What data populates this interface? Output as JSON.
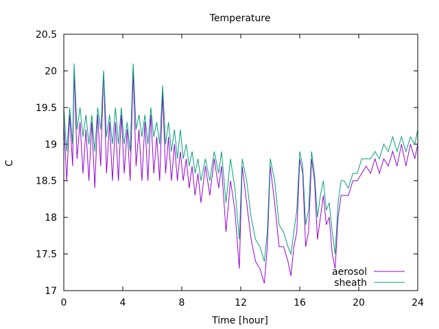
{
  "chart_data": {
    "type": "line",
    "title": "Temperature",
    "xlabel": "Time [hour]",
    "ylabel": "C",
    "xlim": [
      0,
      24
    ],
    "ylim": [
      17,
      20.5
    ],
    "xticks": [
      0,
      4,
      8,
      12,
      16,
      20,
      24
    ],
    "yticks": [
      17,
      17.5,
      18,
      18.5,
      19,
      19.5,
      20,
      20.5
    ],
    "ytick_labels": [
      "17",
      "17.5",
      "18",
      "18.5",
      "19",
      "19.5",
      "20",
      "20.5"
    ],
    "grid": false,
    "legend_position": "bottom-right",
    "series": [
      {
        "name": "aerosol",
        "color": "#9400d3",
        "x": [
          0,
          0.2,
          0.4,
          0.6,
          0.7,
          0.9,
          1.1,
          1.3,
          1.5,
          1.7,
          1.9,
          2.1,
          2.3,
          2.5,
          2.7,
          2.9,
          3.1,
          3.3,
          3.5,
          3.7,
          3.9,
          4.1,
          4.3,
          4.5,
          4.7,
          4.9,
          5.1,
          5.3,
          5.5,
          5.7,
          5.9,
          6.1,
          6.3,
          6.5,
          6.7,
          6.9,
          7.1,
          7.3,
          7.5,
          7.7,
          7.9,
          8.1,
          8.3,
          8.5,
          8.7,
          8.9,
          9.1,
          9.3,
          9.6,
          9.9,
          10.2,
          10.5,
          10.7,
          11.0,
          11.3,
          11.6,
          11.9,
          12.1,
          12.4,
          12.7,
          13.0,
          13.3,
          13.6,
          13.8,
          14.0,
          14.3,
          14.6,
          14.9,
          15.2,
          15.4,
          15.6,
          15.8,
          16.0,
          16.2,
          16.4,
          16.6,
          16.8,
          17.0,
          17.2,
          17.4,
          17.6,
          17.8,
          18.0,
          18.2,
          18.4,
          18.6,
          18.8,
          19.0,
          19.3,
          19.6,
          19.9,
          20.2,
          20.5,
          20.8,
          21.1,
          21.4,
          21.7,
          22.0,
          22.3,
          22.6,
          22.9,
          23.2,
          23.5,
          23.8,
          24.0
        ],
        "values": [
          19.3,
          18.5,
          19.4,
          18.7,
          20.0,
          18.8,
          19.3,
          18.6,
          19.2,
          18.5,
          19.3,
          18.4,
          19.4,
          18.7,
          20.0,
          18.6,
          19.3,
          18.5,
          19.3,
          18.5,
          19.4,
          18.6,
          19.2,
          18.5,
          20.0,
          18.7,
          19.2,
          18.5,
          19.3,
          18.5,
          19.4,
          18.6,
          19.1,
          18.5,
          19.7,
          18.6,
          19.1,
          18.5,
          19.0,
          18.5,
          18.9,
          18.5,
          18.8,
          18.4,
          18.7,
          18.3,
          18.6,
          18.2,
          18.7,
          18.3,
          18.8,
          18.4,
          18.7,
          17.8,
          18.5,
          18.1,
          17.3,
          18.7,
          18.2,
          17.7,
          17.4,
          17.3,
          17.1,
          17.6,
          18.7,
          18.2,
          17.6,
          17.6,
          17.4,
          17.2,
          17.6,
          17.8,
          18.8,
          18.6,
          17.6,
          17.8,
          18.8,
          18.5,
          17.7,
          18.0,
          18.3,
          17.9,
          18.0,
          17.5,
          17.3,
          18.0,
          18.3,
          18.3,
          18.3,
          18.5,
          18.5,
          18.6,
          18.7,
          18.6,
          18.8,
          18.6,
          18.8,
          18.7,
          18.9,
          18.7,
          19.0,
          18.7,
          19.0,
          18.8,
          19.0
        ]
      },
      {
        "name": "sheath",
        "color": "#009e73",
        "x": [
          0,
          0.2,
          0.4,
          0.6,
          0.7,
          0.9,
          1.1,
          1.3,
          1.5,
          1.7,
          1.9,
          2.1,
          2.3,
          2.5,
          2.7,
          2.9,
          3.1,
          3.3,
          3.5,
          3.7,
          3.9,
          4.1,
          4.3,
          4.5,
          4.7,
          4.9,
          5.1,
          5.3,
          5.5,
          5.7,
          5.9,
          6.1,
          6.3,
          6.5,
          6.7,
          6.9,
          7.1,
          7.3,
          7.5,
          7.7,
          7.9,
          8.1,
          8.3,
          8.5,
          8.7,
          8.9,
          9.1,
          9.3,
          9.6,
          9.9,
          10.2,
          10.5,
          10.7,
          11.0,
          11.3,
          11.6,
          11.9,
          12.1,
          12.4,
          12.7,
          13.0,
          13.3,
          13.6,
          13.8,
          14.0,
          14.3,
          14.6,
          14.9,
          15.2,
          15.4,
          15.6,
          15.8,
          16.0,
          16.2,
          16.4,
          16.6,
          16.8,
          17.0,
          17.2,
          17.4,
          17.6,
          17.8,
          18.0,
          18.2,
          18.4,
          18.6,
          18.8,
          19.0,
          19.3,
          19.6,
          19.9,
          20.2,
          20.5,
          20.8,
          21.1,
          21.4,
          21.7,
          22.0,
          22.3,
          22.6,
          22.9,
          23.2,
          23.5,
          23.8,
          24.0
        ],
        "values": [
          19.5,
          18.9,
          19.5,
          19.0,
          20.1,
          19.2,
          19.5,
          19.1,
          19.4,
          19.0,
          19.4,
          18.9,
          19.5,
          19.2,
          20.0,
          19.1,
          19.4,
          19.0,
          19.5,
          19.0,
          19.5,
          19.0,
          19.3,
          18.9,
          20.1,
          19.2,
          19.4,
          19.1,
          19.4,
          19.0,
          19.5,
          19.1,
          19.3,
          19.0,
          19.8,
          19.0,
          19.3,
          18.9,
          19.2,
          18.8,
          19.2,
          18.8,
          19.0,
          18.7,
          18.9,
          18.6,
          18.8,
          18.5,
          18.8,
          18.5,
          18.9,
          18.6,
          18.9,
          18.2,
          18.8,
          18.4,
          17.7,
          18.8,
          18.5,
          18.0,
          17.7,
          17.6,
          17.4,
          17.8,
          18.8,
          18.5,
          17.9,
          17.8,
          17.6,
          17.5,
          17.8,
          18.1,
          18.9,
          18.7,
          17.9,
          18.1,
          18.9,
          18.6,
          18.0,
          18.3,
          18.5,
          18.1,
          18.2,
          17.8,
          17.5,
          18.2,
          18.5,
          18.5,
          18.4,
          18.6,
          18.6,
          18.8,
          18.8,
          18.8,
          18.9,
          18.8,
          19.0,
          18.9,
          19.1,
          18.9,
          19.1,
          18.9,
          19.1,
          19.0,
          19.2
        ]
      }
    ]
  }
}
